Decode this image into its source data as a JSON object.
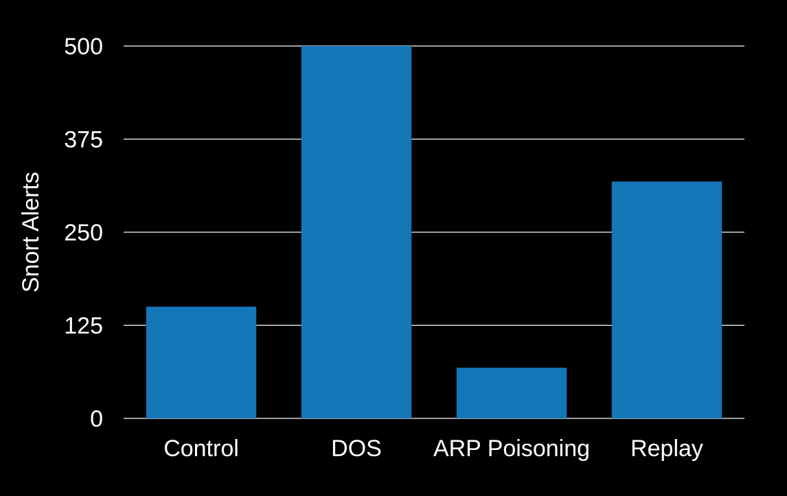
{
  "chart_data": {
    "type": "bar",
    "title": "",
    "xlabel": "",
    "ylabel": "Snort Alerts",
    "categories": [
      "Control",
      "DOS",
      "ARP Poisoning",
      "Replay"
    ],
    "values": [
      150,
      500,
      68,
      318
    ],
    "ylim": [
      0,
      500
    ],
    "yticks": [
      0,
      125,
      250,
      375,
      500
    ],
    "grid": true,
    "legend": "none",
    "colors": {
      "background": "#000000",
      "bar": "#1477b8",
      "grid": "#ffffff",
      "text": "#ffffff"
    }
  }
}
